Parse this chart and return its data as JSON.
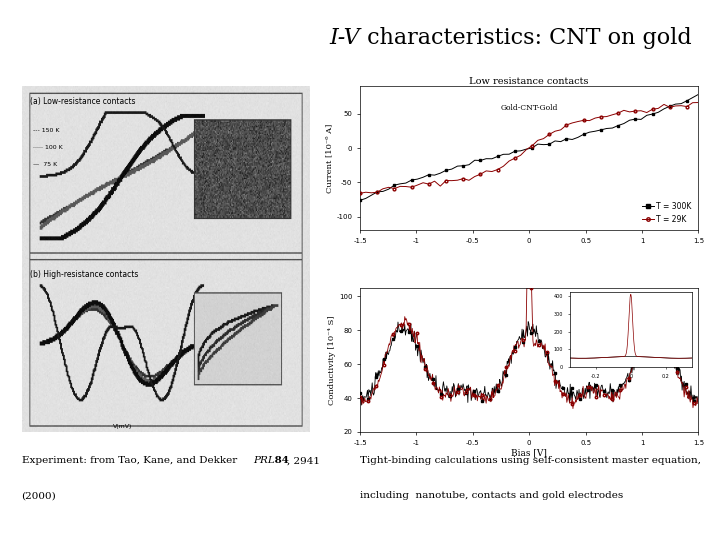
{
  "title_italic": "I-V",
  "title_rest": " characteristics: CNT on gold",
  "title_fontsize": 16,
  "bg_color": "#ffffff",
  "bottom_left_line1a": "Experiment: from Tao, Kane, and Dekker ",
  "bottom_left_line1b_italic": "PRL",
  "bottom_left_line1c": " 84",
  "bottom_left_line1d": ", 2941",
  "bottom_left_line2": "(2000)",
  "bottom_right_line1": "Tight-binding calculations using self-consistent master equation,",
  "bottom_right_line2": "including  nanotube, contacts and gold electrodes",
  "right_top_title": "Low resistance contacts",
  "right_top_subtitle": "Gold-CNT-Gold",
  "right_top_ylabel": "Current [10⁻⁶ A]",
  "right_bottom_ylabel": "Conductivity [10⁻⁴ S]",
  "right_bottom_xlabel": "Bias [V]",
  "legend_300K": "T = 300K",
  "legend_29K": "T = 29K",
  "text_fontsize": 7.5,
  "annotation_fontsize": 6.5
}
